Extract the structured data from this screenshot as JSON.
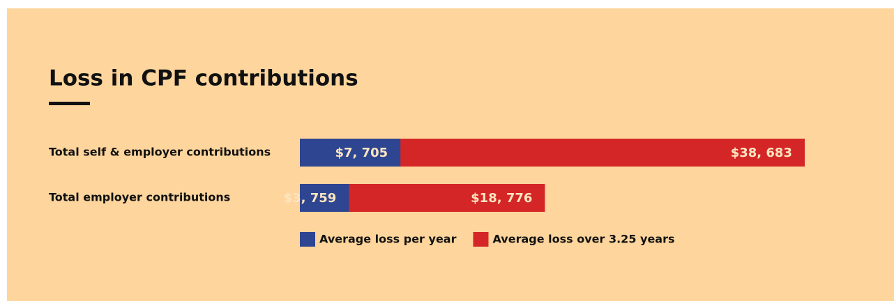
{
  "chart_data": {
    "type": "bar",
    "orientation": "horizontal",
    "barmode": "overlay",
    "title": "Loss in CPF contributions",
    "categories": [
      "Total self & employer contributions",
      "Total employer contributions"
    ],
    "series": [
      {
        "name": "Average loss over 3.25 years",
        "color": "#d42627",
        "values": [
          38683,
          18776
        ],
        "value_labels": [
          "$38, 683",
          "$18, 776"
        ]
      },
      {
        "name": "Average loss per year",
        "color": "#2e4591",
        "values": [
          7705,
          3759
        ],
        "value_labels": [
          "$7, 705",
          "$3, 759"
        ]
      }
    ]
  }
}
